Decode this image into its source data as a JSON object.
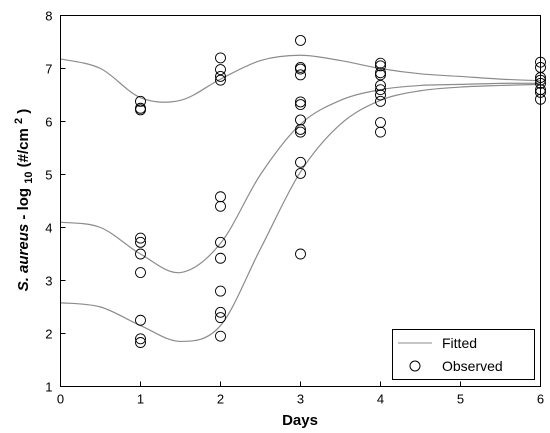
{
  "chart_data": {
    "type": "scatter",
    "xlabel": "Days",
    "ylabel_parts": {
      "italic": "S. aureus",
      "mid": "- log",
      "sub": "10",
      "tail": "(#/cm",
      "sup": "2",
      "end": ")"
    },
    "xlim": [
      0,
      6
    ],
    "ylim": [
      1,
      8
    ],
    "x_ticks": [
      "0",
      "1",
      "2",
      "3",
      "4",
      "5",
      "6"
    ],
    "y_ticks": [
      "1",
      "2",
      "3",
      "4",
      "5",
      "6",
      "7",
      "8"
    ],
    "grid": false,
    "legend": {
      "position": "bottom-right",
      "entries": [
        "Fitted",
        "Observed"
      ]
    },
    "series": [
      {
        "name": "Fitted",
        "marker": "line",
        "color": "#8c8c8c",
        "curves": [
          {
            "x": [
              0,
              0.5,
              1,
              1.5,
              2,
              2.5,
              3,
              3.5,
              4,
              4.5,
              5,
              5.5,
              6
            ],
            "y": [
              7.18,
              7.0,
              6.45,
              6.4,
              6.8,
              7.15,
              7.25,
              7.15,
              7.0,
              6.9,
              6.85,
              6.8,
              6.77
            ]
          },
          {
            "x": [
              0,
              0.5,
              1,
              1.5,
              2,
              2.5,
              3,
              3.5,
              4,
              4.5,
              5,
              5.5,
              6
            ],
            "y": [
              4.1,
              4.0,
              3.5,
              3.15,
              3.7,
              5.0,
              5.95,
              6.4,
              6.6,
              6.68,
              6.7,
              6.72,
              6.72
            ]
          },
          {
            "x": [
              0,
              0.5,
              1,
              1.5,
              2,
              2.5,
              3,
              3.5,
              4,
              4.5,
              5,
              5.5,
              6
            ],
            "y": [
              2.58,
              2.5,
              2.15,
              1.85,
              2.15,
              3.6,
              5.05,
              5.95,
              6.4,
              6.58,
              6.65,
              6.68,
              6.7
            ]
          }
        ]
      },
      {
        "name": "Observed",
        "marker": "open-circle",
        "color": "#000000",
        "points": [
          [
            1,
            6.38
          ],
          [
            1,
            6.25
          ],
          [
            1,
            6.22
          ],
          [
            1,
            3.8
          ],
          [
            1,
            3.72
          ],
          [
            1,
            3.5
          ],
          [
            1,
            3.15
          ],
          [
            1,
            2.25
          ],
          [
            1,
            1.9
          ],
          [
            1,
            1.83
          ],
          [
            2,
            7.2
          ],
          [
            2,
            6.98
          ],
          [
            2,
            6.85
          ],
          [
            2,
            6.78
          ],
          [
            2,
            4.58
          ],
          [
            2,
            4.4
          ],
          [
            2,
            3.72
          ],
          [
            2,
            3.42
          ],
          [
            2,
            2.8
          ],
          [
            2,
            2.4
          ],
          [
            2,
            2.3
          ],
          [
            2,
            1.95
          ],
          [
            3,
            7.53
          ],
          [
            3,
            7.02
          ],
          [
            3,
            6.99
          ],
          [
            3,
            6.88
          ],
          [
            3,
            6.37
          ],
          [
            3,
            6.32
          ],
          [
            3,
            6.03
          ],
          [
            3,
            5.85
          ],
          [
            3,
            5.8
          ],
          [
            3,
            5.23
          ],
          [
            3,
            5.02
          ],
          [
            3,
            3.5
          ],
          [
            4,
            7.1
          ],
          [
            4,
            7.05
          ],
          [
            4,
            6.92
          ],
          [
            4,
            6.88
          ],
          [
            4,
            6.68
          ],
          [
            4,
            6.6
          ],
          [
            4,
            6.5
          ],
          [
            4,
            6.38
          ],
          [
            4,
            5.98
          ],
          [
            4,
            5.8
          ],
          [
            6,
            7.12
          ],
          [
            6,
            7.02
          ],
          [
            6,
            6.83
          ],
          [
            6,
            6.78
          ],
          [
            6,
            6.72
          ],
          [
            6,
            6.6
          ],
          [
            6,
            6.55
          ],
          [
            6,
            6.42
          ]
        ]
      }
    ]
  }
}
